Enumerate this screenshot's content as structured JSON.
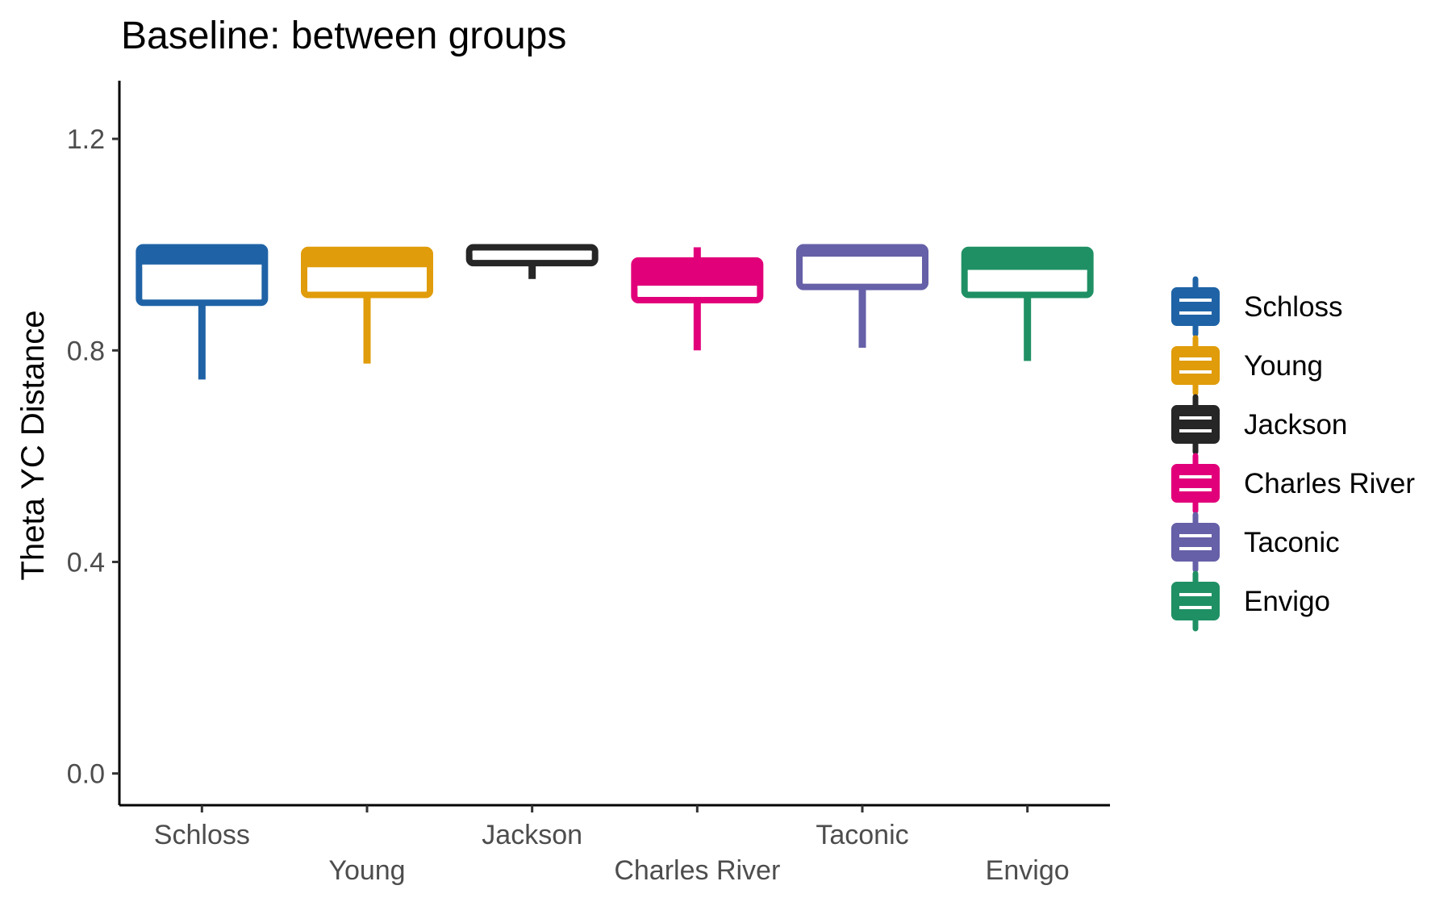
{
  "chart_data": {
    "type": "box",
    "title": "Baseline: between groups",
    "xlabel": "",
    "ylabel": "Theta YC Distance",
    "ylim": [
      -0.06,
      1.31
    ],
    "yticks": [
      0.0,
      0.4,
      0.8,
      1.2
    ],
    "ytick_labels": [
      "0.0",
      "0.4",
      "0.8",
      "1.2"
    ],
    "categories": [
      "Schloss",
      "Young",
      "Jackson",
      "Charles River",
      "Taconic",
      "Envigo"
    ],
    "legend_position": "right",
    "grid": false,
    "series": [
      {
        "name": "Schloss",
        "color": "#1f63a6",
        "whisker_low": 0.745,
        "q1": 0.89,
        "median": 0.96,
        "q3": 0.995,
        "whisker_high": 0.995
      },
      {
        "name": "Young",
        "color": "#e09c0a",
        "whisker_low": 0.775,
        "q1": 0.905,
        "median": 0.955,
        "q3": 0.99,
        "whisker_high": 0.995
      },
      {
        "name": "Jackson",
        "color": "#262626",
        "whisker_low": 0.935,
        "q1": 0.965,
        "median": 0.985,
        "q3": 0.995,
        "whisker_high": 0.995
      },
      {
        "name": "Charles River",
        "color": "#e2007a",
        "whisker_low": 0.8,
        "q1": 0.895,
        "median": 0.92,
        "q3": 0.97,
        "whisker_high": 0.995
      },
      {
        "name": "Taconic",
        "color": "#6660a8",
        "whisker_low": 0.805,
        "q1": 0.92,
        "median": 0.975,
        "q3": 0.995,
        "whisker_high": 0.995
      },
      {
        "name": "Envigo",
        "color": "#1f9064",
        "whisker_low": 0.78,
        "q1": 0.905,
        "median": 0.95,
        "q3": 0.99,
        "whisker_high": 0.995
      }
    ]
  }
}
